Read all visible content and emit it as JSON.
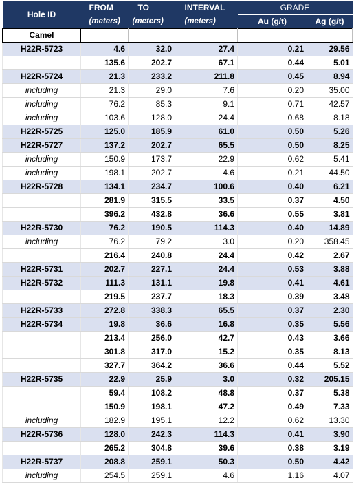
{
  "header": {
    "hole_id": "Hole ID",
    "from": "FROM",
    "from_unit": "(meters)",
    "to": "TO",
    "to_unit": "(meters)",
    "interval": "INTERVAL",
    "interval_unit": "(meters)",
    "grade": "GRADE",
    "au": "Au (g/t)",
    "ag": "Ag (g/t)"
  },
  "section": "Camel",
  "rows": [
    {
      "hole": "H22R-5723",
      "from": "4.6",
      "to": "32.0",
      "interval": "27.4",
      "au": "0.21",
      "ag": "29.56",
      "shade": true,
      "incl": false
    },
    {
      "hole": "",
      "from": "135.6",
      "to": "202.7",
      "interval": "67.1",
      "au": "0.44",
      "ag": "5.01",
      "shade": false,
      "incl": false
    },
    {
      "hole": "H22R-5724",
      "from": "21.3",
      "to": "233.2",
      "interval": "211.8",
      "au": "0.45",
      "ag": "8.94",
      "shade": true,
      "incl": false
    },
    {
      "hole": "including",
      "from": "21.3",
      "to": "29.0",
      "interval": "7.6",
      "au": "0.20",
      "ag": "35.00",
      "shade": false,
      "incl": true
    },
    {
      "hole": "including",
      "from": "76.2",
      "to": "85.3",
      "interval": "9.1",
      "au": "0.71",
      "ag": "42.57",
      "shade": false,
      "incl": true
    },
    {
      "hole": "including",
      "from": "103.6",
      "to": "128.0",
      "interval": "24.4",
      "au": "0.68",
      "ag": "8.18",
      "shade": false,
      "incl": true
    },
    {
      "hole": "H22R-5725",
      "from": "125.0",
      "to": "185.9",
      "interval": "61.0",
      "au": "0.50",
      "ag": "5.26",
      "shade": true,
      "incl": false
    },
    {
      "hole": "H22R-5727",
      "from": "137.2",
      "to": "202.7",
      "interval": "65.5",
      "au": "0.50",
      "ag": "8.25",
      "shade": true,
      "incl": false
    },
    {
      "hole": "including",
      "from": "150.9",
      "to": "173.7",
      "interval": "22.9",
      "au": "0.62",
      "ag": "5.41",
      "shade": false,
      "incl": true
    },
    {
      "hole": "including",
      "from": "198.1",
      "to": "202.7",
      "interval": "4.6",
      "au": "0.21",
      "ag": "44.50",
      "shade": false,
      "incl": true
    },
    {
      "hole": "H22R-5728",
      "from": "134.1",
      "to": "234.7",
      "interval": "100.6",
      "au": "0.40",
      "ag": "6.21",
      "shade": true,
      "incl": false
    },
    {
      "hole": "",
      "from": "281.9",
      "to": "315.5",
      "interval": "33.5",
      "au": "0.37",
      "ag": "4.50",
      "shade": false,
      "incl": false
    },
    {
      "hole": "",
      "from": "396.2",
      "to": "432.8",
      "interval": "36.6",
      "au": "0.55",
      "ag": "3.81",
      "shade": false,
      "incl": false
    },
    {
      "hole": "H22R-5730",
      "from": "76.2",
      "to": "190.5",
      "interval": "114.3",
      "au": "0.40",
      "ag": "14.89",
      "shade": true,
      "incl": false
    },
    {
      "hole": "including",
      "from": "76.2",
      "to": "79.2",
      "interval": "3.0",
      "au": "0.20",
      "ag": "358.45",
      "shade": false,
      "incl": true
    },
    {
      "hole": "",
      "from": "216.4",
      "to": "240.8",
      "interval": "24.4",
      "au": "0.42",
      "ag": "2.67",
      "shade": false,
      "incl": false
    },
    {
      "hole": "H22R-5731",
      "from": "202.7",
      "to": "227.1",
      "interval": "24.4",
      "au": "0.53",
      "ag": "3.88",
      "shade": true,
      "incl": false
    },
    {
      "hole": "H22R-5732",
      "from": "111.3",
      "to": "131.1",
      "interval": "19.8",
      "au": "0.41",
      "ag": "4.61",
      "shade": true,
      "incl": false
    },
    {
      "hole": "",
      "from": "219.5",
      "to": "237.7",
      "interval": "18.3",
      "au": "0.39",
      "ag": "3.48",
      "shade": false,
      "incl": false
    },
    {
      "hole": "H22R-5733",
      "from": "272.8",
      "to": "338.3",
      "interval": "65.5",
      "au": "0.37",
      "ag": "2.30",
      "shade": true,
      "incl": false
    },
    {
      "hole": "H22R-5734",
      "from": "19.8",
      "to": "36.6",
      "interval": "16.8",
      "au": "0.35",
      "ag": "5.56",
      "shade": true,
      "incl": false
    },
    {
      "hole": "",
      "from": "213.4",
      "to": "256.0",
      "interval": "42.7",
      "au": "0.43",
      "ag": "3.66",
      "shade": false,
      "incl": false
    },
    {
      "hole": "",
      "from": "301.8",
      "to": "317.0",
      "interval": "15.2",
      "au": "0.35",
      "ag": "8.13",
      "shade": false,
      "incl": false
    },
    {
      "hole": "",
      "from": "327.7",
      "to": "364.2",
      "interval": "36.6",
      "au": "0.44",
      "ag": "5.52",
      "shade": false,
      "incl": false
    },
    {
      "hole": "H22R-5735",
      "from": "22.9",
      "to": "25.9",
      "interval": "3.0",
      "au": "0.32",
      "ag": "205.15",
      "shade": true,
      "incl": false
    },
    {
      "hole": "",
      "from": "59.4",
      "to": "108.2",
      "interval": "48.8",
      "au": "0.37",
      "ag": "5.38",
      "shade": false,
      "incl": false
    },
    {
      "hole": "",
      "from": "150.9",
      "to": "198.1",
      "interval": "47.2",
      "au": "0.49",
      "ag": "7.33",
      "shade": false,
      "incl": false
    },
    {
      "hole": "including",
      "from": "182.9",
      "to": "195.1",
      "interval": "12.2",
      "au": "0.62",
      "ag": "13.30",
      "shade": false,
      "incl": true
    },
    {
      "hole": "H22R-5736",
      "from": "128.0",
      "to": "242.3",
      "interval": "114.3",
      "au": "0.41",
      "ag": "3.90",
      "shade": true,
      "incl": false
    },
    {
      "hole": "",
      "from": "265.2",
      "to": "304.8",
      "interval": "39.6",
      "au": "0.38",
      "ag": "3.19",
      "shade": false,
      "incl": false
    },
    {
      "hole": "H22R-5737",
      "from": "208.8",
      "to": "259.1",
      "interval": "50.3",
      "au": "0.50",
      "ag": "4.42",
      "shade": true,
      "incl": false
    },
    {
      "hole": "including",
      "from": "254.5",
      "to": "259.1",
      "interval": "4.6",
      "au": "1.16",
      "ag": "4.07",
      "shade": false,
      "incl": true
    }
  ]
}
